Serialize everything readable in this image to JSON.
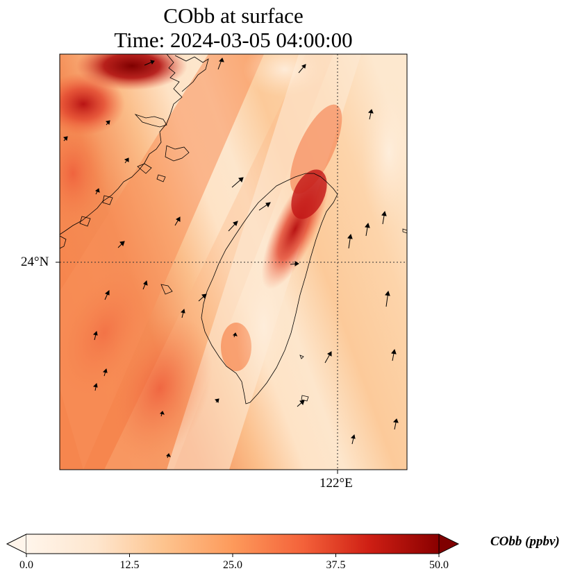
{
  "title_line1": "CObb at surface",
  "title_line2": "Time: 2024-03-05 04:00:00",
  "lat_tick": "24°N",
  "lon_tick": "122°E",
  "colorbar": {
    "label": "CObb (ppbv)",
    "min": 0.0,
    "max": 50.0,
    "ticks": [
      "0.0",
      "12.5",
      "25.0",
      "37.5",
      "50.0"
    ],
    "colormap": [
      "#fff5eb",
      "#fdd9b4",
      "#fdae6b",
      "#f4623a",
      "#d9261a",
      "#b00000",
      "#7f0000"
    ],
    "extend": "both"
  },
  "map": {
    "gridlines": "dotted",
    "features": [
      "coastline",
      "wind-vectors",
      "concentration-field"
    ]
  }
}
